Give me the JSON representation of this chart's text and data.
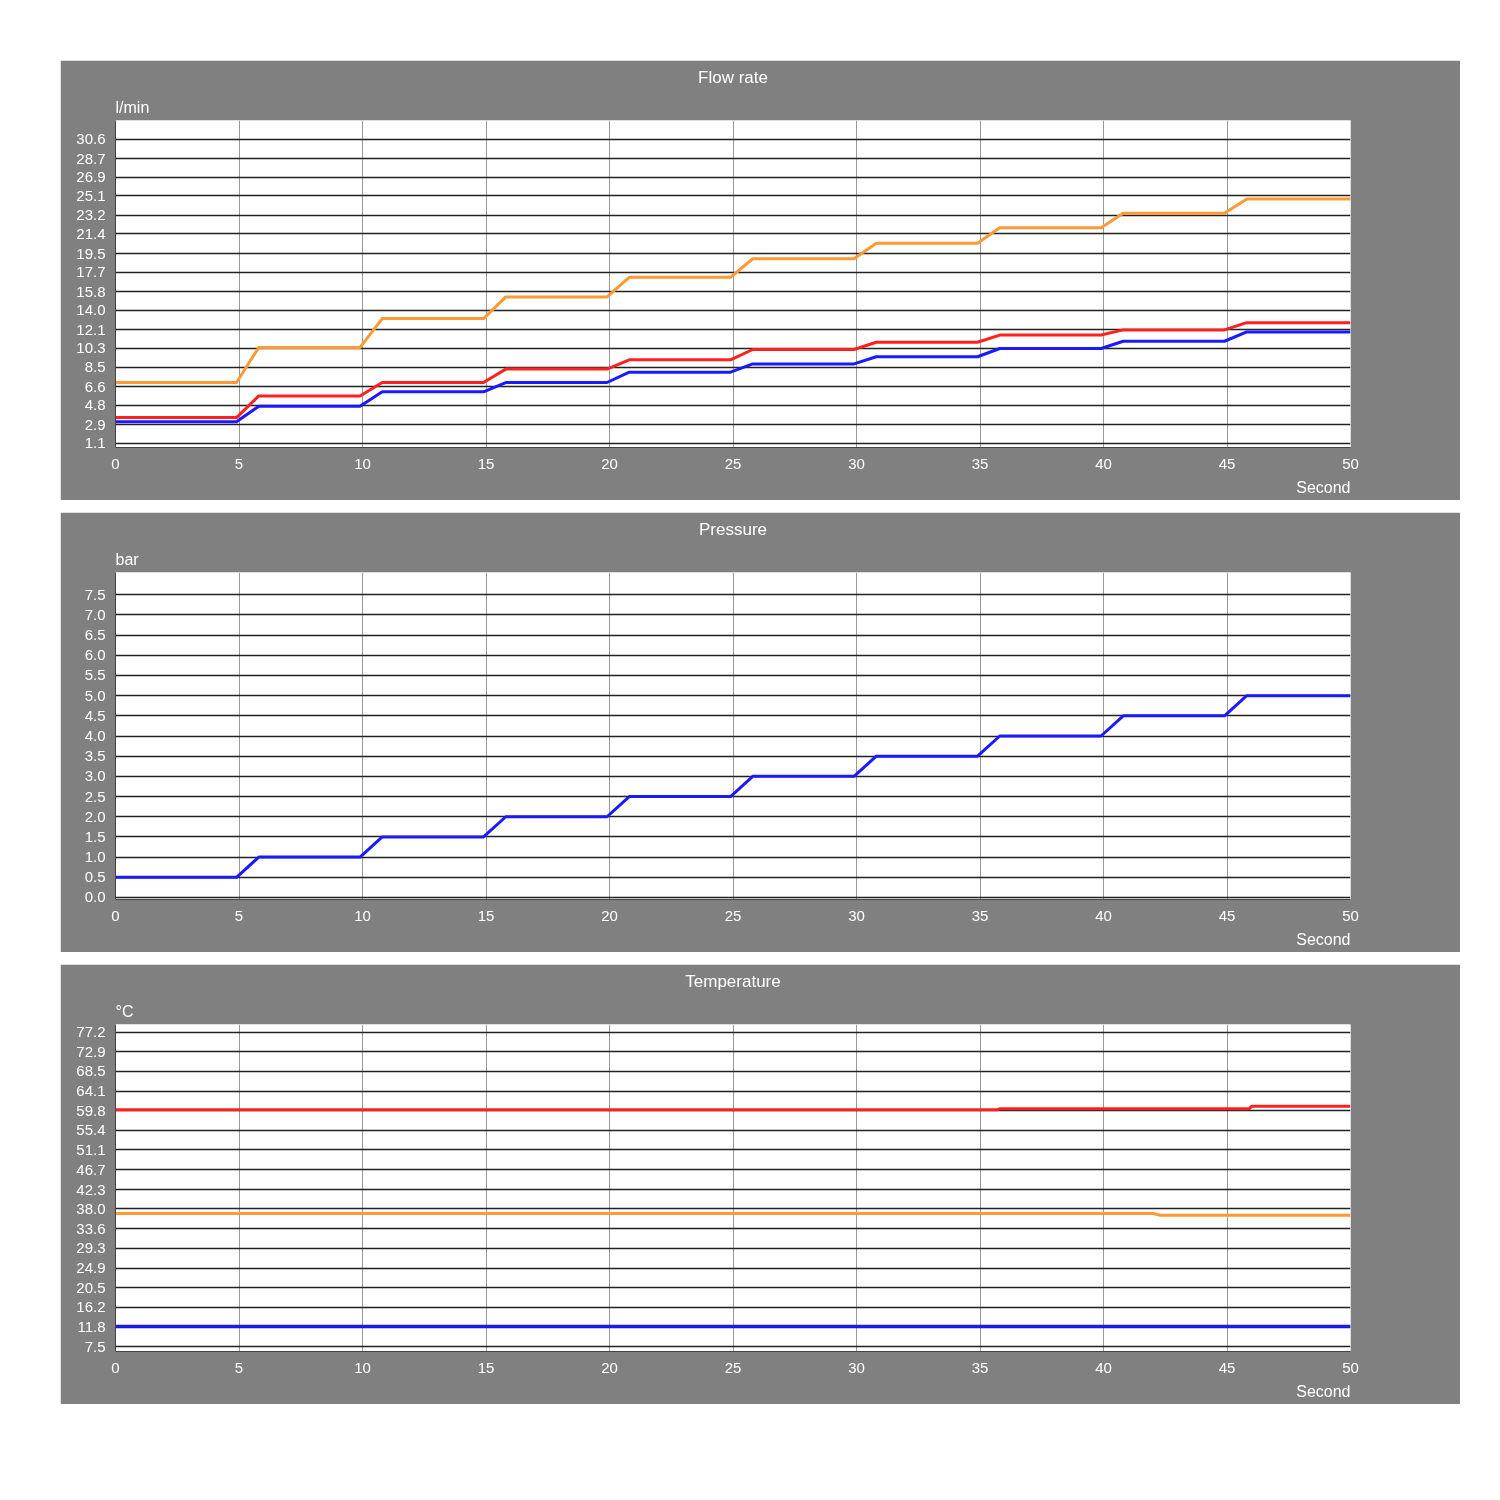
{
  "chart_data": [
    {
      "type": "line",
      "title": "Flow rate",
      "ylabel": "l/min",
      "xlabel": "Second",
      "grid": true,
      "x": [
        0,
        4.9,
        5.8,
        9.9,
        10.8,
        14.9,
        15.8,
        19.9,
        20.8,
        24.9,
        25.8,
        29.9,
        30.8,
        34.9,
        35.8,
        39.9,
        40.8,
        44.9,
        45.8,
        50
      ],
      "series": [
        {
          "color": "#ff9933",
          "values": [
            7.0,
            7.0,
            10.4,
            10.4,
            13.2,
            13.2,
            15.3,
            15.3,
            17.2,
            17.2,
            19.0,
            19.0,
            20.5,
            20.5,
            22.0,
            22.0,
            23.4,
            23.4,
            24.8,
            24.8
          ]
        },
        {
          "color": "#ff2020",
          "values": [
            3.6,
            3.6,
            5.7,
            5.7,
            7.0,
            7.0,
            8.3,
            8.3,
            9.2,
            9.2,
            10.2,
            10.2,
            10.9,
            10.9,
            11.6,
            11.6,
            12.1,
            12.1,
            12.8,
            12.8
          ]
        },
        {
          "color": "#1a1aff",
          "values": [
            3.2,
            3.2,
            4.7,
            4.7,
            6.1,
            6.1,
            7.0,
            7.0,
            8.0,
            8.0,
            8.8,
            8.8,
            9.5,
            9.5,
            10.3,
            10.3,
            11.0,
            11.0,
            11.9,
            11.9
          ]
        }
      ],
      "xlim": [
        0,
        50
      ],
      "xticks": [
        0,
        5,
        10,
        15,
        20,
        25,
        30,
        35,
        40,
        45,
        50
      ],
      "ylim": [
        0.7,
        32.4
      ],
      "yticks": [
        1.1,
        2.9,
        4.8,
        6.6,
        8.5,
        10.3,
        12.1,
        {
          "value": 14,
          "label": "14.0"
        },
        15.8,
        17.7,
        19.5,
        21.4,
        23.2,
        25.1,
        26.9,
        28.7,
        30.6
      ]
    },
    {
      "type": "line",
      "title": "Pressure",
      "ylabel": "bar",
      "xlabel": "Second",
      "grid": true,
      "x": [
        0,
        4.9,
        5.8,
        9.9,
        10.8,
        14.9,
        15.8,
        19.9,
        20.8,
        24.9,
        25.8,
        29.9,
        30.8,
        34.9,
        35.8,
        39.9,
        40.8,
        44.9,
        45.8,
        50
      ],
      "series": [
        {
          "color": "#1a1aff",
          "values": [
            0.5,
            0.5,
            1.0,
            1.0,
            1.5,
            1.5,
            2.0,
            2.0,
            2.5,
            2.5,
            3.0,
            3.0,
            3.5,
            3.5,
            4.0,
            4.0,
            4.5,
            4.5,
            5.0,
            5.0
          ]
        }
      ],
      "xlim": [
        0,
        50
      ],
      "xticks": [
        0,
        5,
        10,
        15,
        20,
        25,
        30,
        35,
        40,
        45,
        50
      ],
      "ylim": [
        -0.05,
        8.05
      ],
      "yticks": [
        {
          "value": 0,
          "label": "0.0"
        },
        0.5,
        {
          "value": 1,
          "label": "1.0"
        },
        1.5,
        {
          "value": 2,
          "label": "2.0"
        },
        2.5,
        {
          "value": 3,
          "label": "3.0"
        },
        3.5,
        {
          "value": 4,
          "label": "4.0"
        },
        4.5,
        {
          "value": 5,
          "label": "5.0"
        },
        5.5,
        {
          "value": 6,
          "label": "6.0"
        },
        6.5,
        {
          "value": 7,
          "label": "7.0"
        },
        7.5
      ]
    },
    {
      "type": "line",
      "title": "Temperature",
      "ylabel": "°C",
      "xlabel": "Second",
      "grid": true,
      "series": [
        {
          "color": "#ff2020",
          "x": [
            0,
            35.7,
            35.8,
            45.9,
            46,
            50
          ],
          "values": [
            60.0,
            60.0,
            60.2,
            60.2,
            60.8,
            60.8
          ]
        },
        {
          "color": "#ff9933",
          "x": [
            0,
            42,
            42.3,
            50
          ],
          "values": [
            37.0,
            37.0,
            36.6,
            36.6
          ]
        },
        {
          "color": "#1a1aff",
          "x": [
            0,
            50
          ],
          "values": [
            12.0,
            12.0
          ]
        }
      ],
      "xlim": [
        0,
        50
      ],
      "xticks": [
        0,
        5,
        10,
        15,
        20,
        25,
        30,
        35,
        40,
        45,
        50
      ],
      "ylim": [
        6.4,
        78.9
      ],
      "yticks": [
        7.5,
        11.8,
        16.2,
        20.5,
        24.9,
        29.3,
        33.6,
        {
          "value": 38,
          "label": "38.0"
        },
        42.3,
        46.7,
        51.1,
        55.4,
        59.8,
        64.1,
        68.5,
        72.9,
        77.2
      ]
    }
  ]
}
